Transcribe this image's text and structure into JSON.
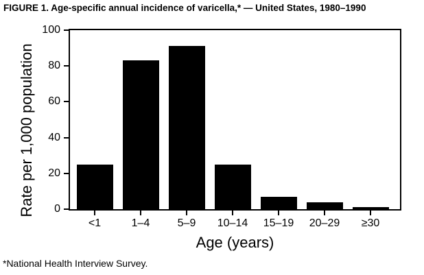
{
  "chart_data": {
    "type": "bar",
    "title": "FIGURE 1. Age-specific annual incidence of varicella,* — United States, 1980–1990",
    "categories": [
      "<1",
      "1–4",
      "5–9",
      "10–14",
      "15–19",
      "20–29",
      "≥30"
    ],
    "values": [
      25,
      83,
      91,
      25,
      7,
      4,
      1
    ],
    "xlabel": "Age (years)",
    "ylabel": "Rate per 1,000 population",
    "ylim": [
      0,
      100
    ],
    "y_ticks": [
      0,
      20,
      40,
      60,
      80,
      100
    ],
    "bar_color": "#000000",
    "axis_color": "#000000",
    "grid": false,
    "legend": "none",
    "footnote": "*National Health Interview Survey."
  }
}
